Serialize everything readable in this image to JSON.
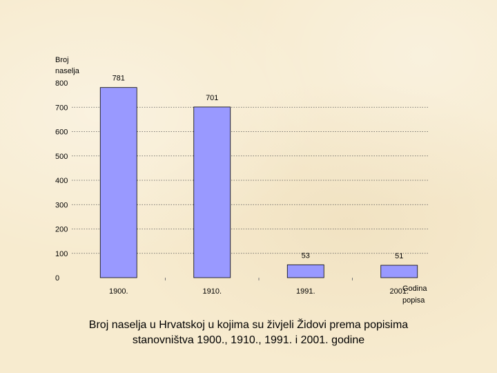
{
  "chart_data": {
    "type": "bar",
    "categories": [
      "1900.",
      "1910.",
      "1991.",
      "2001."
    ],
    "values": [
      781,
      701,
      53,
      51
    ],
    "data_labels": [
      "781",
      "701",
      "53",
      "51"
    ],
    "ylabel_lines": [
      "Broj",
      "naselja"
    ],
    "xlabel_lines": [
      "Godina",
      "popisa"
    ],
    "ylim": [
      0,
      800
    ],
    "yticks": [
      0,
      100,
      200,
      300,
      400,
      500,
      600,
      700,
      800
    ],
    "grid": true,
    "legend": "none",
    "bar_color": "#9999ff",
    "bar_edge_color": "#000000"
  },
  "caption": {
    "line1": "Broj naselja u Hrvatskoj u kojima su živjeli Židovi prema popisima",
    "line2": "stanovništva 1900., 1910., 1991. i 2001. godine"
  }
}
